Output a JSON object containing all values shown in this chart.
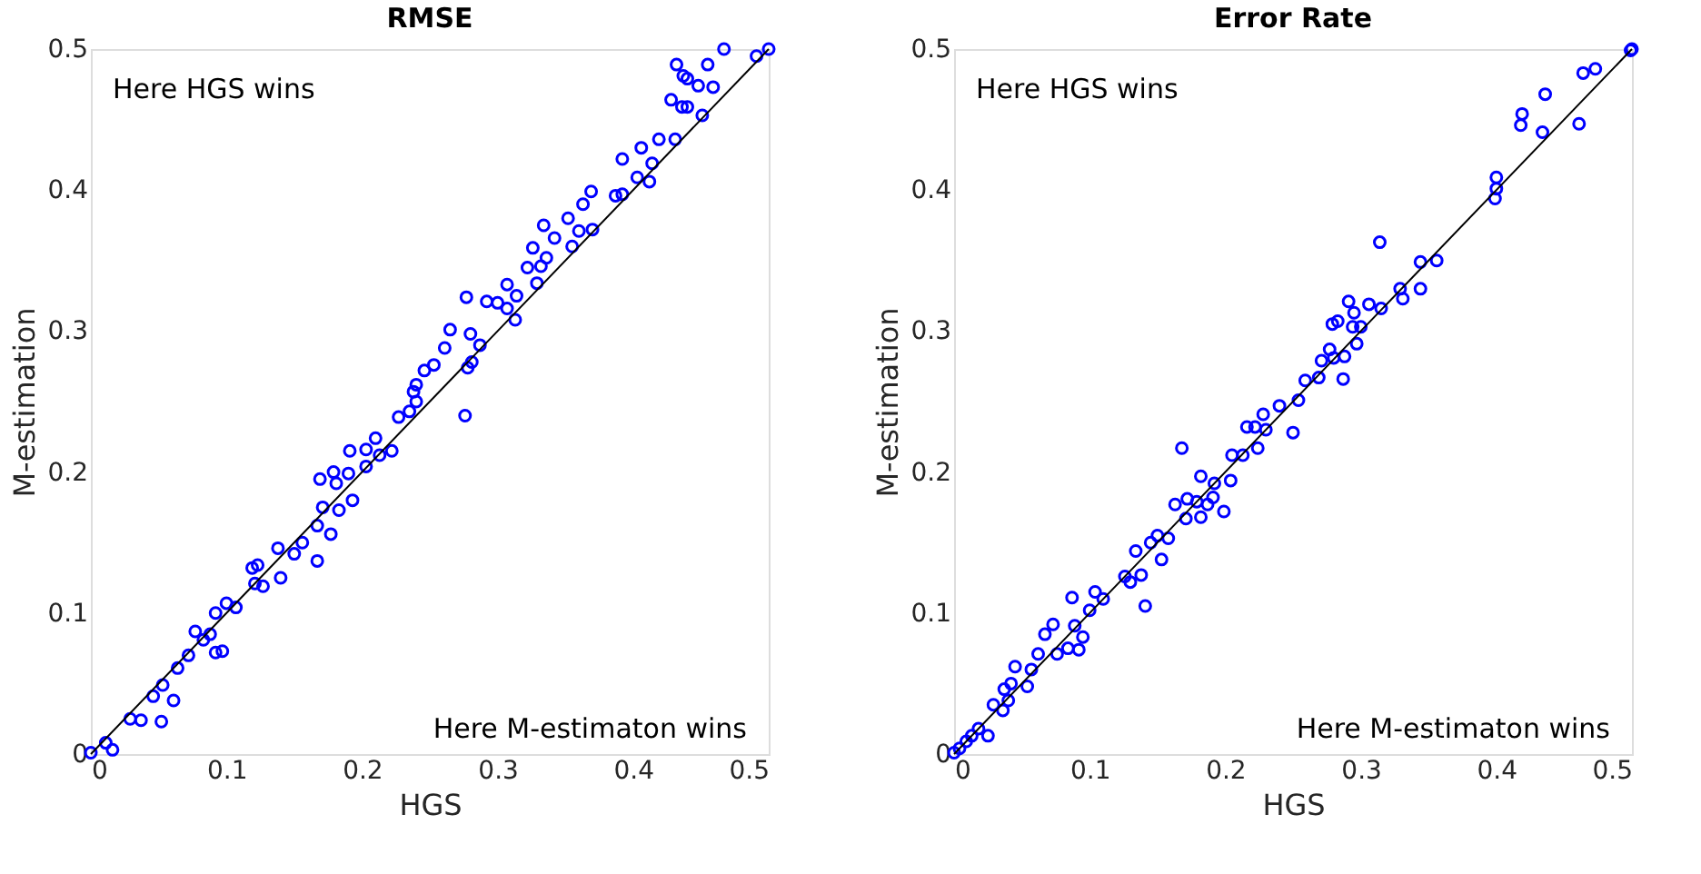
{
  "chart_data": [
    {
      "type": "scatter",
      "title": "RMSE",
      "xlabel": "HGS",
      "ylabel": "M-estimation",
      "xlim": [
        0,
        0.5
      ],
      "ylim": [
        0,
        0.5
      ],
      "xticks": [
        0,
        0.1,
        0.2,
        0.3,
        0.4,
        0.5
      ],
      "yticks": [
        0,
        0.1,
        0.2,
        0.3,
        0.4,
        0.5
      ],
      "grid": false,
      "annotations": [
        "Here HGS wins",
        "Here M-estimaton wins"
      ],
      "series": [
        {
          "type": "scatter",
          "color": "#0000ff",
          "marker": "circle",
          "x": [
            0,
            0.011,
            0.016,
            0.029,
            0.037,
            0.052,
            0.046,
            0.053,
            0.061,
            0.064,
            0.072,
            0.077,
            0.083,
            0.092,
            0.092,
            0.097,
            0.088,
            0.1,
            0.107,
            0.119,
            0.123,
            0.121,
            0.127,
            0.138,
            0.14,
            0.15,
            0.156,
            0.167,
            0.167,
            0.177,
            0.171,
            0.169,
            0.183,
            0.181,
            0.179,
            0.193,
            0.19,
            0.191,
            0.203,
            0.203,
            0.21,
            0.213,
            0.222,
            0.227,
            0.235,
            0.24,
            0.24,
            0.238,
            0.246,
            0.253,
            0.261,
            0.265,
            0.276,
            0.278,
            0.281,
            0.28,
            0.277,
            0.287,
            0.292,
            0.3,
            0.307,
            0.313,
            0.307,
            0.314,
            0.322,
            0.326,
            0.329,
            0.332,
            0.334,
            0.336,
            0.342,
            0.355,
            0.352,
            0.36,
            0.363,
            0.369,
            0.37,
            0.387,
            0.392,
            0.392,
            0.403,
            0.406,
            0.412,
            0.414,
            0.419,
            0.431,
            0.428,
            0.436,
            0.44,
            0.451,
            0.448,
            0.437,
            0.44,
            0.432,
            0.455,
            0.459,
            0.467,
            0.491,
            0.5
          ],
          "values": [
            0.001,
            0.008,
            0.003,
            0.025,
            0.024,
            0.023,
            0.041,
            0.049,
            0.038,
            0.061,
            0.07,
            0.087,
            0.081,
            0.1,
            0.072,
            0.073,
            0.085,
            0.107,
            0.104,
            0.132,
            0.134,
            0.121,
            0.119,
            0.146,
            0.125,
            0.142,
            0.15,
            0.137,
            0.162,
            0.156,
            0.175,
            0.195,
            0.173,
            0.192,
            0.2,
            0.18,
            0.199,
            0.215,
            0.204,
            0.216,
            0.224,
            0.212,
            0.215,
            0.239,
            0.243,
            0.25,
            0.262,
            0.257,
            0.272,
            0.276,
            0.288,
            0.301,
            0.24,
            0.274,
            0.278,
            0.298,
            0.324,
            0.29,
            0.321,
            0.32,
            0.316,
            0.308,
            0.333,
            0.325,
            0.345,
            0.359,
            0.334,
            0.346,
            0.375,
            0.352,
            0.366,
            0.36,
            0.38,
            0.371,
            0.39,
            0.399,
            0.372,
            0.396,
            0.397,
            0.422,
            0.409,
            0.43,
            0.406,
            0.419,
            0.436,
            0.436,
            0.464,
            0.459,
            0.459,
            0.453,
            0.474,
            0.481,
            0.479,
            0.489,
            0.489,
            0.473,
            0.5,
            0.495,
            0.5
          ]
        },
        {
          "type": "line",
          "color": "#000000",
          "line_style": "solid",
          "x": [
            0,
            0.5
          ],
          "values": [
            0,
            0.5
          ]
        }
      ]
    },
    {
      "type": "scatter",
      "title": "Error Rate",
      "xlabel": "HGS",
      "ylabel": "M-estimation",
      "xlim": [
        0,
        0.5
      ],
      "ylim": [
        0,
        0.5
      ],
      "xticks": [
        0,
        0.1,
        0.2,
        0.3,
        0.4,
        0.5
      ],
      "yticks": [
        0,
        0.1,
        0.2,
        0.3,
        0.4,
        0.5
      ],
      "grid": false,
      "annotations": [
        "Here HGS wins",
        "Here M-estimaton wins"
      ],
      "series": [
        {
          "type": "scatter",
          "color": "#0000ff",
          "marker": "circle",
          "x": [
            0,
            0.004,
            0.009,
            0.013,
            0.018,
            0.025,
            0.029,
            0.036,
            0.04,
            0.037,
            0.045,
            0.042,
            0.054,
            0.057,
            0.062,
            0.067,
            0.073,
            0.076,
            0.084,
            0.092,
            0.087,
            0.089,
            0.095,
            0.1,
            0.104,
            0.11,
            0.126,
            0.13,
            0.138,
            0.141,
            0.134,
            0.145,
            0.15,
            0.153,
            0.158,
            0.163,
            0.168,
            0.171,
            0.172,
            0.179,
            0.182,
            0.182,
            0.187,
            0.191,
            0.192,
            0.199,
            0.204,
            0.205,
            0.213,
            0.224,
            0.216,
            0.222,
            0.23,
            0.228,
            0.24,
            0.25,
            0.254,
            0.259,
            0.269,
            0.271,
            0.277,
            0.28,
            0.287,
            0.288,
            0.279,
            0.283,
            0.291,
            0.295,
            0.294,
            0.297,
            0.3,
            0.306,
            0.314,
            0.315,
            0.329,
            0.331,
            0.344,
            0.344,
            0.356,
            0.399,
            0.4,
            0.4,
            0.418,
            0.419,
            0.434,
            0.436,
            0.461,
            0.464,
            0.473,
            0.499,
            0.5
          ],
          "values": [
            0.001,
            0.004,
            0.009,
            0.013,
            0.018,
            0.013,
            0.035,
            0.031,
            0.038,
            0.046,
            0.062,
            0.05,
            0.048,
            0.06,
            0.071,
            0.085,
            0.092,
            0.071,
            0.075,
            0.074,
            0.111,
            0.091,
            0.083,
            0.102,
            0.115,
            0.11,
            0.126,
            0.122,
            0.127,
            0.105,
            0.144,
            0.15,
            0.155,
            0.138,
            0.153,
            0.177,
            0.217,
            0.167,
            0.181,
            0.179,
            0.168,
            0.197,
            0.177,
            0.182,
            0.192,
            0.172,
            0.194,
            0.212,
            0.212,
            0.217,
            0.232,
            0.232,
            0.23,
            0.241,
            0.247,
            0.228,
            0.251,
            0.265,
            0.267,
            0.279,
            0.287,
            0.281,
            0.266,
            0.282,
            0.305,
            0.307,
            0.321,
            0.313,
            0.303,
            0.291,
            0.303,
            0.319,
            0.363,
            0.316,
            0.33,
            0.323,
            0.33,
            0.349,
            0.35,
            0.394,
            0.401,
            0.409,
            0.446,
            0.454,
            0.441,
            0.468,
            0.447,
            0.483,
            0.486,
            0.499,
            0.5
          ]
        },
        {
          "type": "line",
          "color": "#000000",
          "line_style": "solid",
          "x": [
            0,
            0.5
          ],
          "values": [
            0,
            0.5
          ]
        }
      ]
    }
  ]
}
